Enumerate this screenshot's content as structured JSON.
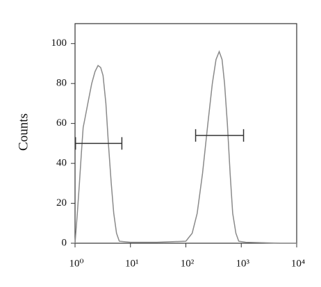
{
  "chart_data": {
    "type": "line",
    "y_label": "Counts",
    "x_log": true,
    "xlim": [
      1,
      10000
    ],
    "ylim": [
      0,
      110
    ],
    "xticks": [
      {
        "value": 1,
        "label": "10⁰"
      },
      {
        "value": 10,
        "label": "10¹"
      },
      {
        "value": 100,
        "label": "10²"
      },
      {
        "value": 1000,
        "label": "10³"
      },
      {
        "value": 10000,
        "label": "10⁴"
      }
    ],
    "yticks": [
      0,
      20,
      40,
      60,
      80,
      100
    ],
    "color": "#8a8a8a",
    "x": [
      1,
      1.1,
      1.2,
      1.3,
      1.4,
      1.5,
      1.7,
      2.0,
      2.3,
      2.6,
      2.9,
      3.2,
      3.6,
      4.0,
      4.5,
      5.0,
      5.6,
      6.3,
      10,
      30,
      100,
      130,
      160,
      200,
      250,
      300,
      350,
      400,
      450,
      500,
      560,
      630,
      700,
      800,
      900,
      1200,
      5000,
      10000
    ],
    "values": [
      0,
      15,
      30,
      45,
      58,
      62,
      70,
      80,
      86,
      89,
      88,
      84,
      70,
      50,
      30,
      15,
      5,
      1,
      0.5,
      0.5,
      1,
      5,
      15,
      35,
      60,
      80,
      92,
      96,
      92,
      80,
      60,
      35,
      15,
      5,
      1,
      0.5,
      0,
      0
    ],
    "gates": [
      {
        "x": [
          1.02,
          7
        ],
        "y": 50
      },
      {
        "x": [
          150,
          1100
        ],
        "y": 54
      }
    ]
  }
}
